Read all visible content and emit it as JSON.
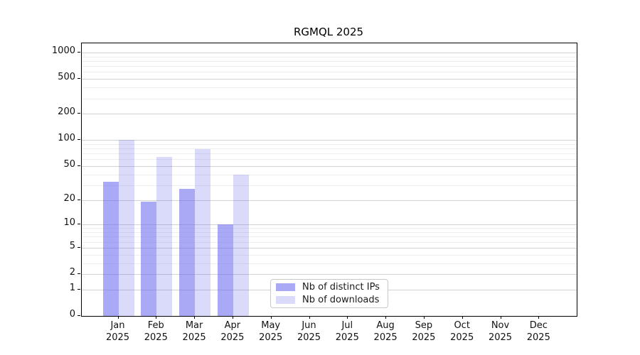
{
  "chart_data": {
    "type": "bar",
    "title": "RGMQL 2025",
    "year_label": "2025",
    "categories": [
      "Jan",
      "Feb",
      "Mar",
      "Apr",
      "May",
      "Jun",
      "Jul",
      "Aug",
      "Sep",
      "Oct",
      "Nov",
      "Dec"
    ],
    "series": [
      {
        "name": "Nb of distinct IPs",
        "color": "rgba(101,101,239,0.56)",
        "values": [
          33,
          19,
          27,
          10,
          null,
          null,
          null,
          null,
          null,
          null,
          null,
          null
        ]
      },
      {
        "name": "Nb of downloads",
        "color": "rgba(101,101,239,0.24)",
        "values": [
          101,
          64,
          78,
          40,
          null,
          null,
          null,
          null,
          null,
          null,
          null,
          null
        ]
      }
    ],
    "y_axis": {
      "scale": "log1p",
      "ticks": [
        0,
        1,
        2,
        5,
        10,
        20,
        50,
        100,
        200,
        500,
        1000
      ],
      "minor_ticks": [
        3,
        4,
        6,
        7,
        8,
        9,
        30,
        40,
        60,
        70,
        80,
        90,
        300,
        400,
        600,
        700,
        800,
        900
      ]
    },
    "grid": true,
    "legend_position": "inside lower center"
  }
}
